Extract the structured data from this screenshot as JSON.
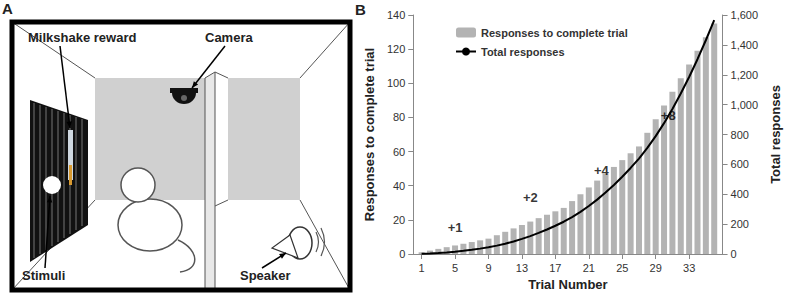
{
  "diagram": {
    "panel_label": "A",
    "labels": {
      "milkshake": "Milkshake reward",
      "camera": "Camera",
      "stimuli": "Stimuli",
      "speaker": "Speaker"
    }
  },
  "chart_data": {
    "panel_label": "B",
    "type": "bar",
    "x": [
      1,
      2,
      3,
      4,
      5,
      6,
      7,
      8,
      9,
      10,
      11,
      12,
      13,
      14,
      15,
      16,
      17,
      18,
      19,
      20,
      21,
      22,
      23,
      24,
      25,
      26,
      27,
      28,
      29,
      30,
      31,
      32,
      33,
      34,
      35,
      36
    ],
    "xlabel": "Trial Number",
    "ylabel": "Responses to complete trial",
    "y2label": "Total responses",
    "xlim": [
      0,
      37
    ],
    "xticks": [
      1,
      5,
      9,
      13,
      17,
      21,
      25,
      29,
      33
    ],
    "ylim": [
      0,
      140
    ],
    "yticks": [
      0,
      20,
      40,
      60,
      80,
      100,
      120,
      140
    ],
    "y2lim": [
      0,
      1600
    ],
    "y2ticks": [
      0,
      200,
      400,
      600,
      800,
      1000,
      1200,
      1400,
      1600
    ],
    "series": [
      {
        "name": "Responses to complete trial",
        "type": "bar",
        "color": "#b3b3b3",
        "values": [
          1,
          2,
          3,
          4,
          5,
          6,
          7,
          8,
          9,
          11,
          13,
          15,
          17,
          19,
          21,
          23,
          25,
          27,
          31,
          35,
          39,
          43,
          47,
          51,
          55,
          59,
          63,
          71,
          79,
          87,
          95,
          103,
          111,
          119,
          127,
          135
        ]
      },
      {
        "name": "Total responses",
        "type": "line",
        "color": "#000000",
        "axis": "y2",
        "values": [
          1,
          3,
          6,
          10,
          15,
          21,
          28,
          36,
          45,
          56,
          69,
          84,
          101,
          120,
          141,
          164,
          189,
          216,
          247,
          282,
          321,
          364,
          411,
          462,
          517,
          576,
          639,
          710,
          789,
          876,
          971,
          1074,
          1185,
          1304,
          1431,
          1566
        ]
      }
    ],
    "annotations": [
      {
        "text": "+1",
        "x": 5,
        "y": 180,
        "axis": "y2"
      },
      {
        "text": "+2",
        "x": 14,
        "y": 380,
        "axis": "y2"
      },
      {
        "text": "+4",
        "x": 22.5,
        "y": 560,
        "axis": "y2"
      },
      {
        "text": "+8",
        "x": 30.5,
        "y": 930,
        "axis": "y2"
      }
    ],
    "legend": "top-left",
    "grid": false
  }
}
